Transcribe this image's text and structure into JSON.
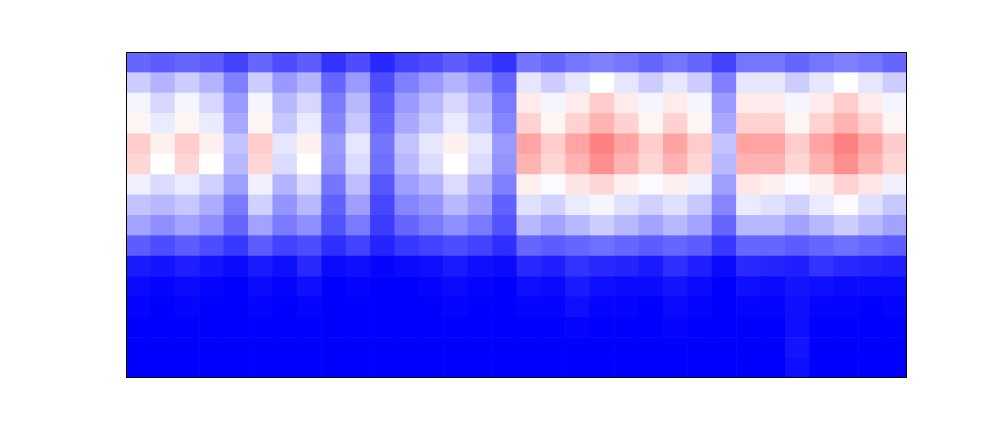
{
  "chart_data": {
    "type": "heatmap",
    "tick_labels": false,
    "zlim": [
      0,
      1
    ],
    "cells": [
      [
        0.2,
        0.18,
        0.2,
        0.18,
        0.13,
        0.2,
        0.15,
        0.18,
        0.1,
        0.15,
        0.08,
        0.13,
        0.15,
        0.18,
        0.15,
        0.1,
        0.23,
        0.2,
        0.23,
        0.25,
        0.23,
        0.2,
        0.23,
        0.2,
        0.13,
        0.23,
        0.23,
        0.2,
        0.23,
        0.25,
        0.23,
        0.2
      ],
      [
        0.4,
        0.35,
        0.4,
        0.35,
        0.25,
        0.4,
        0.3,
        0.35,
        0.2,
        0.3,
        0.15,
        0.25,
        0.3,
        0.35,
        0.3,
        0.2,
        0.45,
        0.4,
        0.45,
        0.5,
        0.45,
        0.4,
        0.45,
        0.4,
        0.25,
        0.45,
        0.45,
        0.4,
        0.45,
        0.5,
        0.45,
        0.4
      ],
      [
        0.48,
        0.42,
        0.48,
        0.42,
        0.3,
        0.48,
        0.36,
        0.42,
        0.24,
        0.36,
        0.18,
        0.3,
        0.36,
        0.42,
        0.36,
        0.24,
        0.54,
        0.48,
        0.54,
        0.6,
        0.54,
        0.48,
        0.54,
        0.48,
        0.3,
        0.54,
        0.54,
        0.48,
        0.54,
        0.6,
        0.54,
        0.48
      ],
      [
        0.52,
        0.46,
        0.52,
        0.46,
        0.33,
        0.52,
        0.39,
        0.46,
        0.26,
        0.39,
        0.2,
        0.33,
        0.39,
        0.46,
        0.39,
        0.26,
        0.59,
        0.52,
        0.59,
        0.65,
        0.59,
        0.52,
        0.59,
        0.52,
        0.33,
        0.59,
        0.59,
        0.52,
        0.59,
        0.65,
        0.59,
        0.52
      ],
      [
        0.6,
        0.53,
        0.6,
        0.53,
        0.38,
        0.6,
        0.45,
        0.53,
        0.3,
        0.45,
        0.23,
        0.38,
        0.45,
        0.53,
        0.45,
        0.3,
        0.68,
        0.6,
        0.68,
        0.75,
        0.68,
        0.6,
        0.68,
        0.6,
        0.38,
        0.68,
        0.68,
        0.6,
        0.68,
        0.75,
        0.68,
        0.6
      ],
      [
        0.58,
        0.5,
        0.58,
        0.5,
        0.36,
        0.58,
        0.43,
        0.5,
        0.29,
        0.43,
        0.22,
        0.36,
        0.43,
        0.5,
        0.43,
        0.29,
        0.65,
        0.58,
        0.65,
        0.72,
        0.65,
        0.58,
        0.65,
        0.58,
        0.36,
        0.65,
        0.65,
        0.58,
        0.65,
        0.72,
        0.65,
        0.58
      ],
      [
        0.47,
        0.43,
        0.46,
        0.41,
        0.31,
        0.47,
        0.35,
        0.43,
        0.23,
        0.37,
        0.17,
        0.31,
        0.35,
        0.43,
        0.35,
        0.25,
        0.53,
        0.49,
        0.55,
        0.58,
        0.53,
        0.49,
        0.53,
        0.47,
        0.31,
        0.55,
        0.53,
        0.49,
        0.53,
        0.59,
        0.55,
        0.47
      ],
      [
        0.38,
        0.36,
        0.39,
        0.34,
        0.24,
        0.41,
        0.29,
        0.36,
        0.19,
        0.31,
        0.14,
        0.26,
        0.29,
        0.36,
        0.31,
        0.19,
        0.44,
        0.41,
        0.46,
        0.48,
        0.44,
        0.41,
        0.44,
        0.39,
        0.26,
        0.46,
        0.44,
        0.41,
        0.46,
        0.49,
        0.44,
        0.39
      ],
      [
        0.32,
        0.28,
        0.32,
        0.28,
        0.2,
        0.32,
        0.24,
        0.28,
        0.16,
        0.24,
        0.12,
        0.2,
        0.24,
        0.28,
        0.24,
        0.16,
        0.36,
        0.32,
        0.36,
        0.4,
        0.36,
        0.32,
        0.36,
        0.32,
        0.2,
        0.36,
        0.36,
        0.32,
        0.36,
        0.4,
        0.36,
        0.32
      ],
      [
        0.18,
        0.15,
        0.18,
        0.15,
        0.11,
        0.18,
        0.13,
        0.15,
        0.09,
        0.13,
        0.07,
        0.11,
        0.13,
        0.15,
        0.13,
        0.09,
        0.2,
        0.18,
        0.2,
        0.22,
        0.2,
        0.18,
        0.2,
        0.18,
        0.11,
        0.2,
        0.2,
        0.18,
        0.2,
        0.22,
        0.2,
        0.18
      ],
      [
        0.05,
        0.04,
        0.06,
        0.04,
        0.02,
        0.05,
        0.03,
        0.08,
        0.02,
        0.03,
        0.01,
        0.02,
        0.03,
        0.05,
        0.03,
        0.02,
        0.08,
        0.06,
        0.1,
        0.08,
        0.07,
        0.05,
        0.09,
        0.06,
        0.02,
        0.08,
        0.07,
        0.06,
        0.1,
        0.08,
        0.07,
        0.06
      ],
      [
        0.02,
        0.01,
        0.02,
        0.01,
        0.0,
        0.02,
        0.01,
        0.03,
        0.0,
        0.01,
        0.0,
        0.0,
        0.01,
        0.02,
        0.01,
        0.0,
        0.03,
        0.02,
        0.05,
        0.03,
        0.02,
        0.02,
        0.04,
        0.02,
        0.0,
        0.03,
        0.02,
        0.04,
        0.03,
        0.02,
        0.02,
        0.02
      ],
      [
        0.01,
        0.0,
        0.01,
        0.0,
        0.0,
        0.01,
        0.0,
        0.01,
        0.0,
        0.0,
        0.0,
        0.0,
        0.0,
        0.01,
        0.0,
        0.0,
        0.01,
        0.01,
        0.03,
        0.01,
        0.01,
        0.0,
        0.02,
        0.01,
        0.0,
        0.01,
        0.01,
        0.03,
        0.01,
        0.01,
        0.0,
        0.01
      ],
      [
        0.0,
        0.0,
        0.0,
        0.0,
        0.0,
        0.0,
        0.0,
        0.0,
        0.0,
        0.0,
        0.0,
        0.0,
        0.0,
        0.0,
        0.0,
        0.0,
        0.0,
        0.0,
        0.01,
        0.0,
        0.0,
        0.0,
        0.01,
        0.0,
        0.0,
        0.0,
        0.0,
        0.03,
        0.0,
        0.0,
        0.0,
        0.0
      ],
      [
        0.0,
        0.0,
        0.0,
        0.0,
        0.0,
        0.0,
        0.0,
        0.0,
        0.0,
        0.0,
        0.0,
        0.0,
        0.0,
        0.0,
        0.0,
        0.0,
        0.0,
        0.0,
        0.0,
        0.0,
        0.0,
        0.0,
        0.0,
        0.0,
        0.0,
        0.0,
        0.0,
        0.04,
        0.0,
        0.0,
        0.0,
        0.0
      ],
      [
        0.0,
        0.0,
        0.0,
        0.0,
        0.0,
        0.0,
        0.0,
        0.0,
        0.0,
        0.0,
        0.0,
        0.0,
        0.0,
        0.0,
        0.0,
        0.0,
        0.0,
        0.0,
        0.0,
        0.0,
        0.0,
        0.0,
        0.0,
        0.0,
        0.0,
        0.0,
        0.0,
        0.03,
        0.0,
        0.0,
        0.0,
        0.0
      ]
    ]
  }
}
